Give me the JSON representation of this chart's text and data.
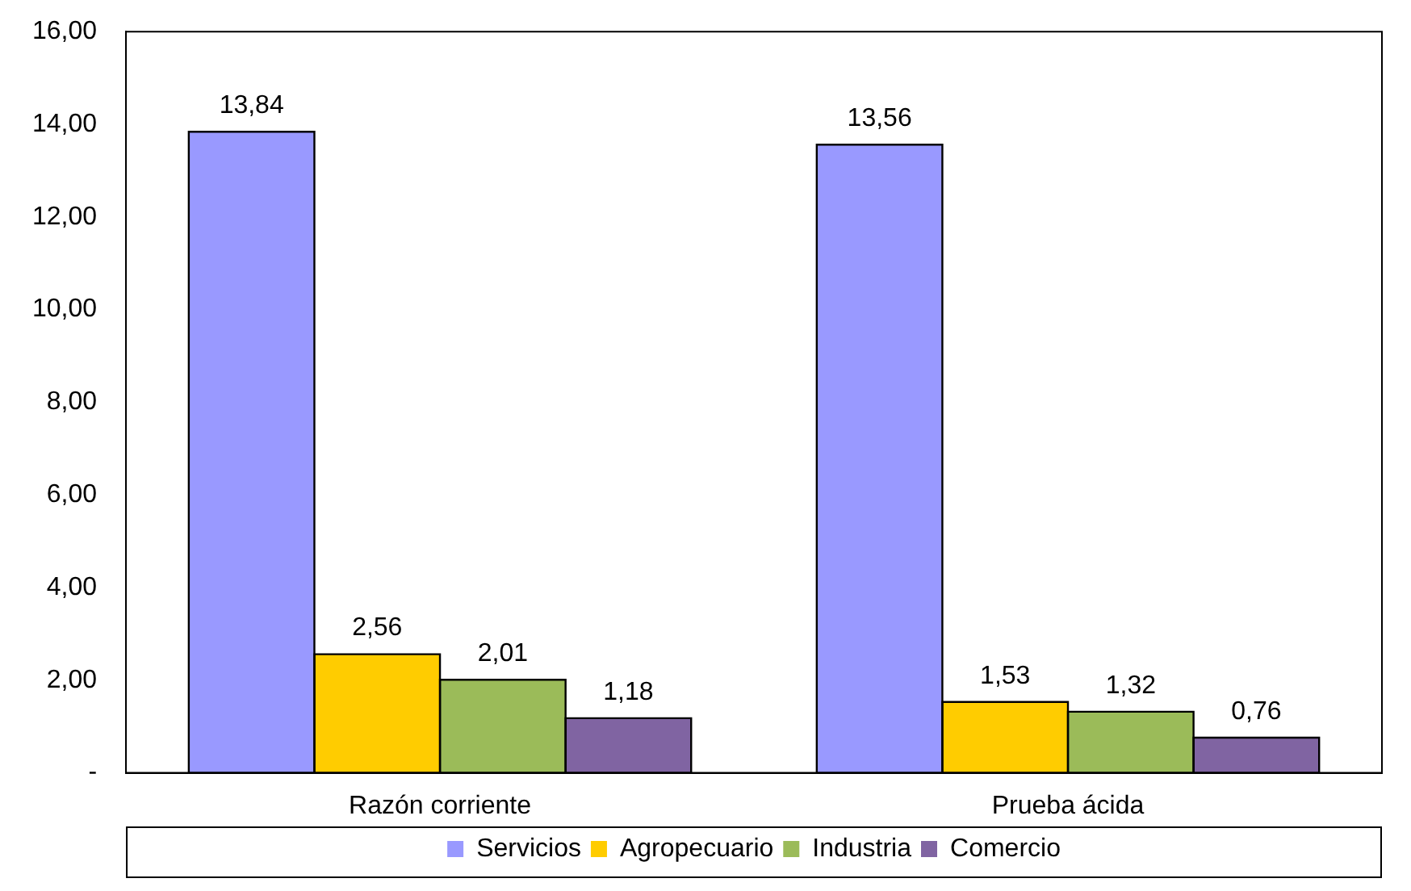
{
  "chart_data": {
    "type": "bar",
    "categories": [
      "Razón corriente",
      "Prueba ácida"
    ],
    "series": [
      {
        "name": "Servicios",
        "color": "#9999ff",
        "values": [
          13.84,
          13.56
        ],
        "value_labels": [
          "13,84",
          "13,56"
        ]
      },
      {
        "name": "Agropecuario",
        "color": "#ffcc00",
        "values": [
          2.56,
          1.53
        ],
        "value_labels": [
          "2,56",
          "1,53"
        ]
      },
      {
        "name": "Industria",
        "color": "#9bbb59",
        "values": [
          2.01,
          1.32
        ],
        "value_labels": [
          "2,01",
          "1,32"
        ]
      },
      {
        "name": "Comercio",
        "color": "#8064a2",
        "values": [
          1.18,
          0.76
        ],
        "value_labels": [
          "1,18",
          "0,76"
        ]
      }
    ],
    "ylim": [
      0,
      16
    ],
    "yticks": [
      {
        "value": 0,
        "label": "-"
      },
      {
        "value": 2,
        "label": "2,00"
      },
      {
        "value": 4,
        "label": "4,00"
      },
      {
        "value": 6,
        "label": "6,00"
      },
      {
        "value": 8,
        "label": "8,00"
      },
      {
        "value": 10,
        "label": "10,00"
      },
      {
        "value": 12,
        "label": "12,00"
      },
      {
        "value": 14,
        "label": "14,00"
      },
      {
        "value": 16,
        "label": "16,00"
      }
    ],
    "grid": false,
    "legend": "bottom"
  }
}
